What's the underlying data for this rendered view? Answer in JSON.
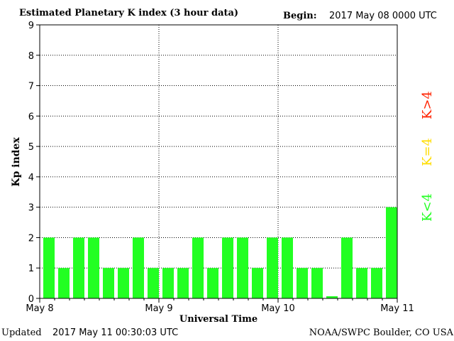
{
  "header": {
    "title": "Estimated Planetary K index (3 hour data)",
    "begin_label": "Begin:",
    "begin_value": "2017 May 08 0000 UTC"
  },
  "footer": {
    "updated_label": "Updated",
    "updated_value": "2017 May 11 00:30:03 UTC",
    "source": "NOAA/SWPC Boulder, CO USA"
  },
  "chart_data": {
    "type": "bar",
    "title": "Estimated Planetary K index (3 hour data)",
    "xlabel": "Universal Time",
    "ylabel": "Kp index",
    "ylim": [
      0,
      9
    ],
    "yticks": [
      "0",
      "1",
      "2",
      "3",
      "4",
      "5",
      "6",
      "7",
      "8",
      "9"
    ],
    "xticks": [
      "May 8",
      "May 9",
      "May 10",
      "May 11"
    ],
    "bar_interval": "3 hour",
    "grid": "dotted",
    "values": [
      2,
      1,
      2,
      2,
      1,
      1,
      2,
      1,
      1,
      1,
      2,
      1,
      2,
      2,
      1,
      2,
      2,
      1,
      1,
      0.07,
      2,
      1,
      1,
      3
    ],
    "bar_color": "#22ff22",
    "legend": {
      "placement": "right",
      "items": [
        {
          "label": "K<4",
          "color": "#22ff22"
        },
        {
          "label": "K=4",
          "color": "#ffdd00"
        },
        {
          "label": "K>4",
          "color": "#ff2200"
        }
      ]
    }
  }
}
